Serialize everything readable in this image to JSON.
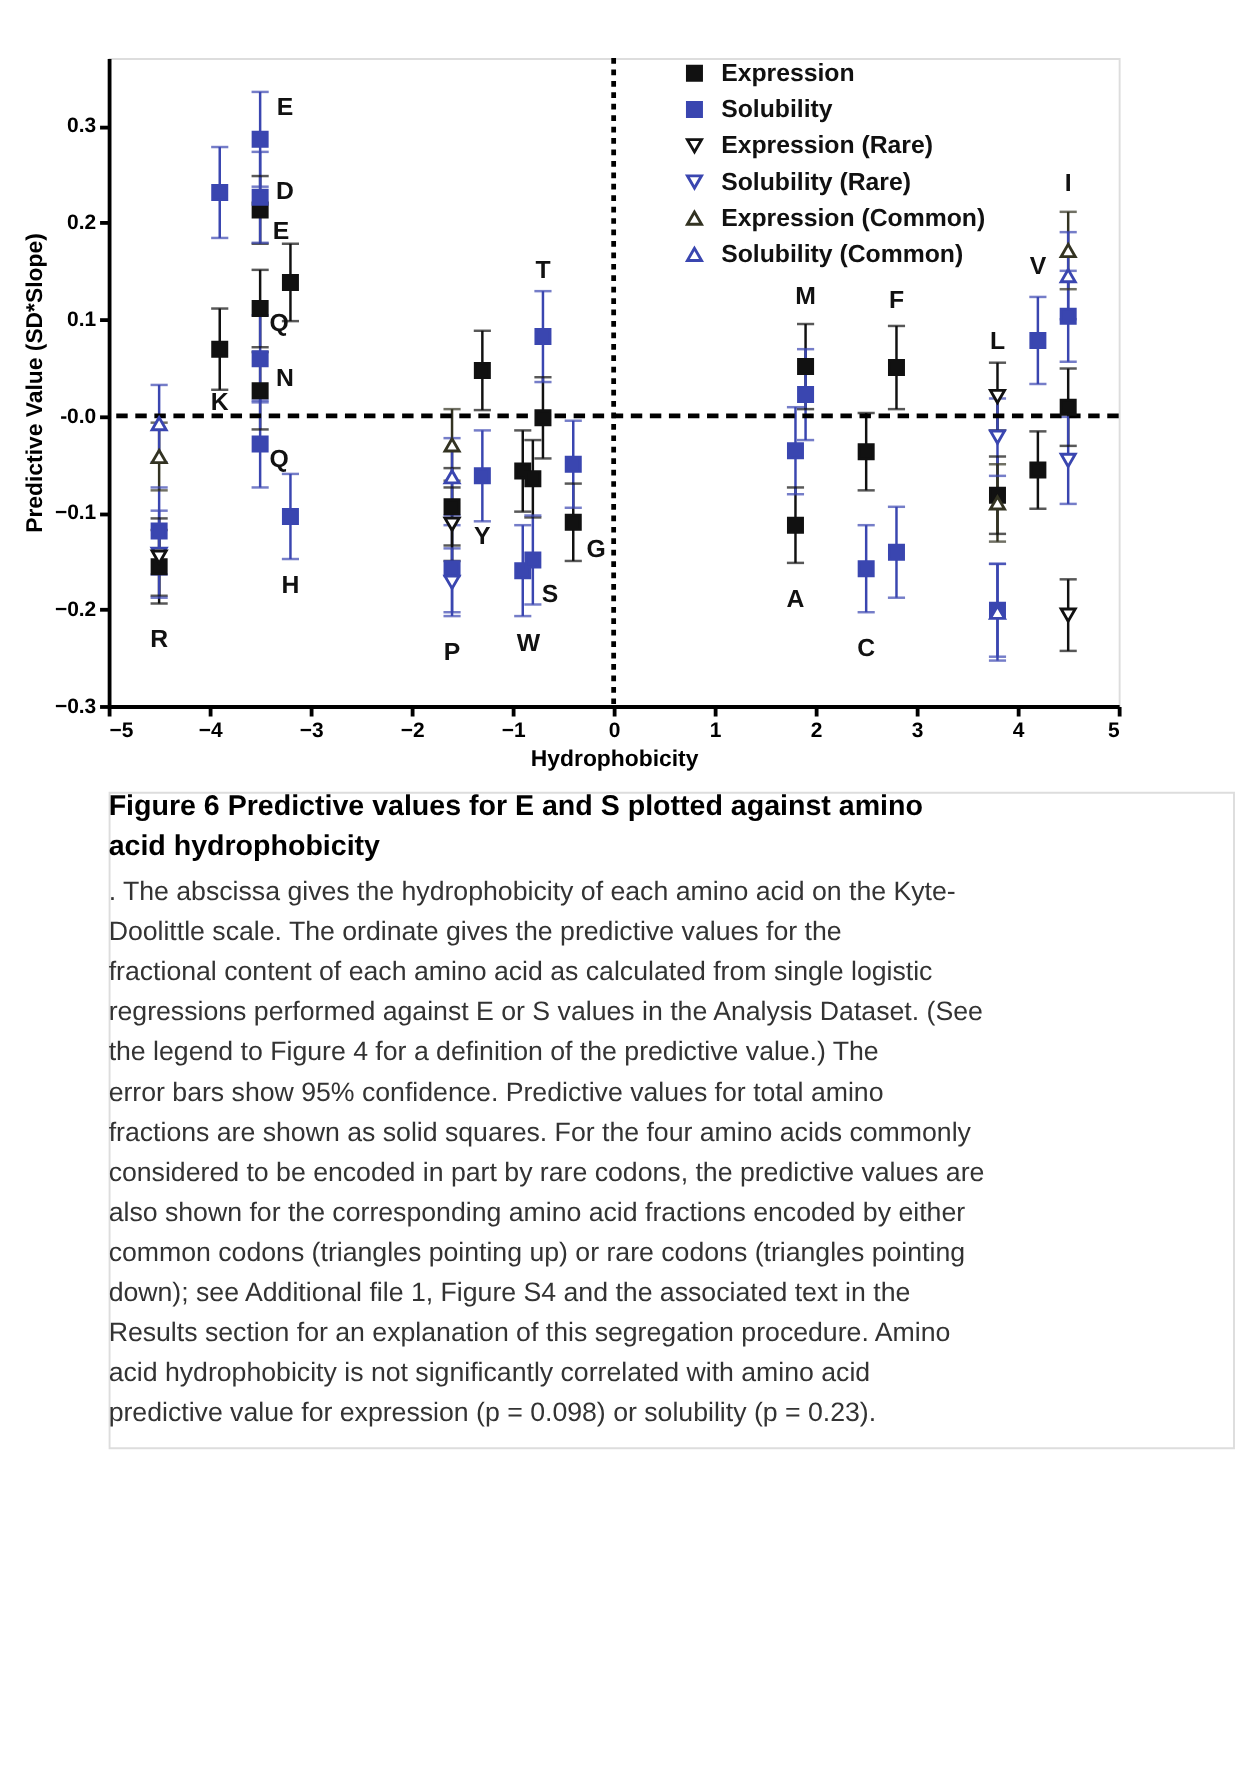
{
  "chart_data": {
    "type": "scatter",
    "title": "Figure 6 Predictive values for E and S plotted against amino acid hydrophobicity",
    "xlabel": "Hydrophobicity",
    "ylabel": "Predictive Value (SD*Slope)",
    "xlim": [
      -5,
      5
    ],
    "xticks": [
      -5,
      -4,
      -3,
      -2,
      -1,
      0,
      1,
      2,
      3,
      4,
      5
    ],
    "ylim": [
      -0.3,
      0.37
    ],
    "yticks": [
      -0.3,
      -0.2,
      -0.1,
      {
        "value": 0,
        "label": "-0.0"
      },
      0.1,
      0.2,
      0.3
    ],
    "grid": false,
    "legend": "top",
    "series": [
      {
        "name": "Expression",
        "color": "#111111",
        "marker": "square",
        "x": [
          -4.5,
          -3.9,
          -3.5,
          -3.5,
          -3.5,
          -3.2,
          -1.6,
          -1.3,
          -0.9,
          -0.8,
          -0.7,
          -0.4,
          1.8,
          1.9,
          2.5,
          2.8,
          3.8,
          4.2,
          4.5
        ],
        "values": [
          -0.156,
          0.069,
          0.213,
          0.111,
          0.026,
          0.138,
          -0.094,
          0.047,
          -0.057,
          -0.065,
          -0.002,
          -0.11,
          -0.113,
          0.051,
          -0.037,
          0.05,
          -0.082,
          -0.056,
          0.009
        ],
        "errors": [
          0.038,
          0.042,
          0.035,
          0.04,
          0.04,
          0.04,
          0.04,
          0.041,
          0.042,
          0.04,
          0.042,
          0.04,
          0.039,
          0.044,
          0.04,
          0.043,
          0.04,
          0.04,
          0.04
        ]
      },
      {
        "name": "Solubility",
        "color": "#3a46b0",
        "marker": "square",
        "x": [
          -4.5,
          -3.9,
          -3.5,
          -3.5,
          -3.5,
          -3.5,
          -3.2,
          -1.6,
          -1.3,
          -0.9,
          -0.8,
          -0.7,
          -0.4,
          1.8,
          1.9,
          2.5,
          2.8,
          3.8,
          4.2,
          4.5
        ],
        "values": [
          -0.119,
          0.231,
          0.286,
          0.226,
          0.059,
          -0.029,
          -0.104,
          -0.158,
          -0.062,
          -0.16,
          -0.149,
          0.082,
          -0.05,
          -0.036,
          0.022,
          -0.158,
          -0.141,
          -0.201,
          0.078,
          0.103
        ],
        "errors": [
          0.045,
          0.047,
          0.049,
          0.047,
          0.045,
          0.045,
          0.044,
          0.045,
          0.047,
          0.047,
          0.046,
          0.047,
          0.045,
          0.045,
          0.047,
          0.045,
          0.047,
          0.048,
          0.045,
          0.047
        ]
      },
      {
        "name": "Expression (Rare)",
        "color": "#111111",
        "marker": "triangle-down",
        "x": [
          -4.5,
          -1.6,
          3.8,
          4.5
        ],
        "values": [
          -0.146,
          -0.112,
          0.02,
          -0.206
        ],
        "errors": [
          0.04,
          0.038,
          0.035,
          0.037
        ]
      },
      {
        "name": "Solubility (Rare)",
        "color": "#3a46b0",
        "marker": "triangle-down",
        "x": [
          -4.5,
          -1.6,
          3.8,
          4.5
        ],
        "values": [
          -0.143,
          -0.172,
          -0.022,
          -0.046
        ],
        "errors": [
          0.045,
          0.035,
          0.04,
          0.045
        ]
      },
      {
        "name": "Expression (Common)",
        "color": "#333322",
        "marker": "triangle-up",
        "x": [
          -4.5,
          -1.6,
          3.8,
          4.5
        ],
        "values": [
          -0.042,
          -0.03,
          -0.09,
          0.171
        ],
        "errors": [
          0.035,
          0.037,
          0.04,
          0.04
        ]
      },
      {
        "name": "Solubility (Common)",
        "color": "#3a46b0",
        "marker": "triangle-up",
        "x": [
          -4.5,
          -1.6,
          3.8,
          4.5
        ],
        "values": [
          -0.008,
          -0.063,
          -0.203,
          0.145
        ],
        "errors": [
          0.04,
          0.04,
          0.05,
          0.045
        ]
      }
    ],
    "ref_lines": [
      {
        "axis": "x",
        "value": 0,
        "line_style": "dotted"
      },
      {
        "axis": "y",
        "value": 0,
        "line_style": "dashed"
      }
    ],
    "annotations": [
      {
        "text": "R",
        "x": -4.5,
        "y": -0.156
      },
      {
        "text": "K",
        "x": -3.9,
        "y": 0.069
      },
      {
        "text": "E",
        "x": -3.5,
        "y": 0.286
      },
      {
        "text": "E",
        "x": -3.5,
        "y": 0.226
      },
      {
        "text": "D",
        "x": -3.5,
        "y": 0.226
      },
      {
        "text": "Q",
        "x": -3.5,
        "y": 0.111
      },
      {
        "text": "N",
        "x": -3.5,
        "y": 0.059
      },
      {
        "text": "Q",
        "x": -3.5,
        "y": -0.029
      },
      {
        "text": "H",
        "x": -3.2,
        "y": -0.104
      },
      {
        "text": "P",
        "x": -1.6,
        "y": -0.172
      },
      {
        "text": "Y",
        "x": -1.3,
        "y": -0.062
      },
      {
        "text": "W",
        "x": -0.9,
        "y": -0.16
      },
      {
        "text": "S",
        "x": -0.8,
        "y": -0.149
      },
      {
        "text": "T",
        "x": -0.7,
        "y": 0.082
      },
      {
        "text": "G",
        "x": -0.4,
        "y": -0.11
      },
      {
        "text": "A",
        "x": 1.8,
        "y": -0.113
      },
      {
        "text": "M",
        "x": 1.9,
        "y": 0.051
      },
      {
        "text": "C",
        "x": 2.5,
        "y": -0.158
      },
      {
        "text": "F",
        "x": 2.8,
        "y": 0.05
      },
      {
        "text": "L",
        "x": 3.8,
        "y": 0.02
      },
      {
        "text": "V",
        "x": 4.2,
        "y": 0.078
      },
      {
        "text": "I",
        "x": 4.5,
        "y": 0.171
      },
      ". The abscissa gives the hydrophobicity of each amino acid on the Kyte-Doolittle scale. The ordinate gives the predictive values for the fractional content of each amino acid as calculated from single logistic regressions performed against E or S values in the Analysis Dataset. (See the legend to Figure 4 for a definition of the predictive value.) The error bars show 95% confidence. Predictive values for total amino fractions are shown as solid squares. For the four amino acids commonly considered to be encoded in part by rare codons, the predictive values are also shown for the corresponding amino acid fractions encoded by either common codons (triangles pointing up) or rare codons (triangles pointing down); see Additional file 1, Figure S4 and the associated text in the Results section for an explanation of this segregation procedure. Amino acid hydrophobicity is not significantly correlated with amino acid predictive value for expression (p = 0.098) or solubility (p = 0.23)."
    ]
  }
}
